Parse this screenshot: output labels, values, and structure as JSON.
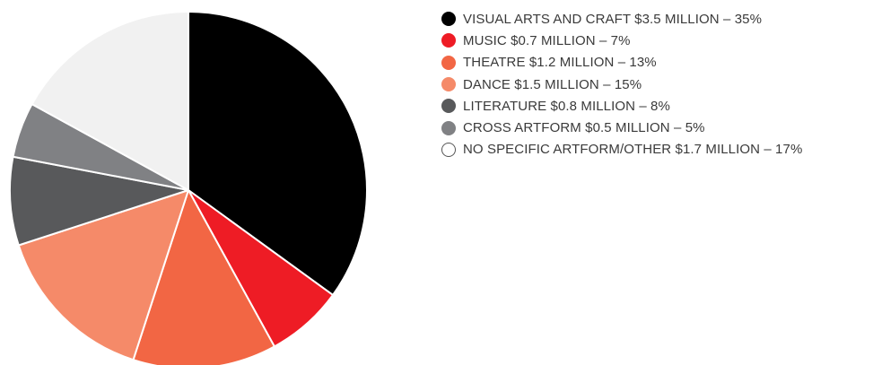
{
  "chart_data": {
    "type": "pie",
    "unit": "percent",
    "slices": [
      {
        "label": "VISUAL ARTS AND CRAFT $3.5 MILLION – 35%",
        "value": 35,
        "color": "#000000"
      },
      {
        "label": "MUSIC $0.7 MILLION – 7%",
        "value": 7,
        "color": "#ee1c25"
      },
      {
        "label": "THEATRE $1.2 MILLION – 13%",
        "value": 13,
        "color": "#f26644"
      },
      {
        "label": "DANCE $1.5 MILLION – 15%",
        "value": 15,
        "color": "#f58a69"
      },
      {
        "label": "LITERATURE $0.8 MILLION – 8%",
        "value": 8,
        "color": "#58595b"
      },
      {
        "label": "CROSS ARTFORM $0.5 MILLION – 5%",
        "value": 5,
        "color": "#808184"
      },
      {
        "label": "NO SPECIFIC ARTFORM/OTHER $1.7 MILLION – 17%",
        "value": 17,
        "color": "#f1f1f1"
      }
    ],
    "legend_position": "right",
    "start_angle": "top",
    "direction": "clockwise"
  }
}
